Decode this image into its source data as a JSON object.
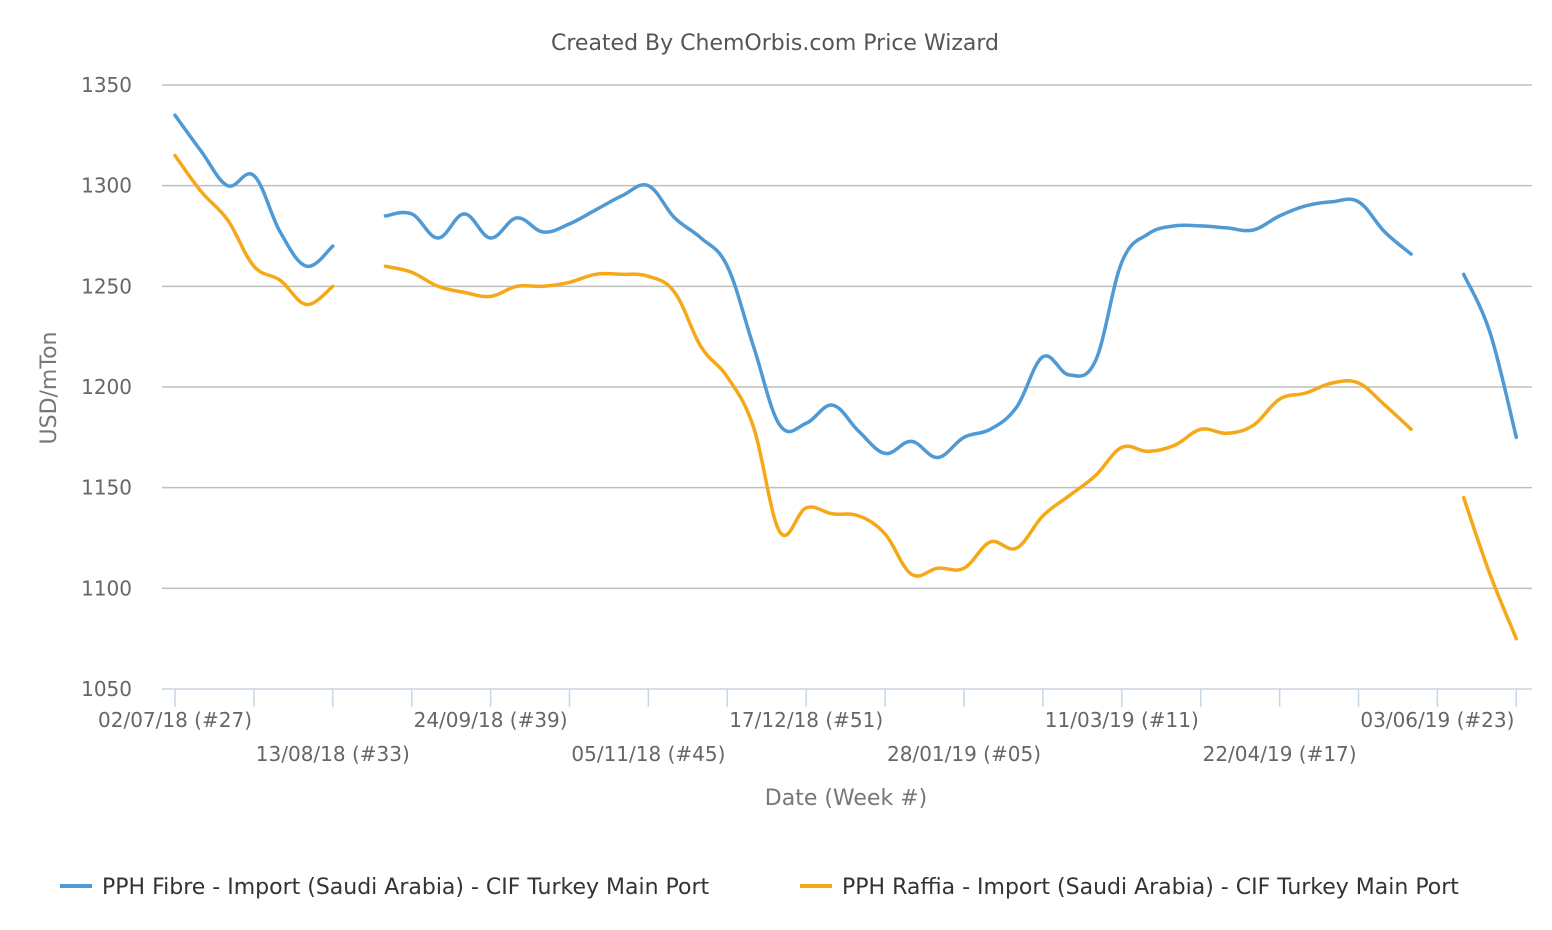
{
  "chart_data": {
    "type": "line",
    "title": "Created By ChemOrbis.com Price Wizard",
    "xlabel": "Date (Week #)",
    "ylabel": "USD/mTon",
    "ylim": [
      1050,
      1350
    ],
    "yticks": [
      1050,
      1100,
      1150,
      1200,
      1250,
      1300,
      1350
    ],
    "x_range": [
      27,
      52,
      26
    ],
    "x_tick_labels": [
      {
        "week_index": 0,
        "label": "02/07/18 (#27)",
        "row": 1
      },
      {
        "week_index": 6,
        "label": "13/08/18 (#33)",
        "row": 2
      },
      {
        "week_index": 12,
        "label": "24/09/18 (#39)",
        "row": 1
      },
      {
        "week_index": 18,
        "label": "05/11/18 (#45)",
        "row": 2
      },
      {
        "week_index": 24,
        "label": "17/12/18 (#51)",
        "row": 1
      },
      {
        "week_index": 30,
        "label": "28/01/19 (#05)",
        "row": 2
      },
      {
        "week_index": 36,
        "label": "11/03/19 (#11)",
        "row": 1
      },
      {
        "week_index": 42,
        "label": "22/04/19 (#17)",
        "row": 2
      },
      {
        "week_index": 48,
        "label": "03/06/19 (#23)",
        "row": 1
      }
    ],
    "x_minor_ticks": [
      0,
      3,
      6,
      9,
      12,
      15,
      18,
      21,
      24,
      27,
      30,
      33,
      36,
      39,
      42,
      45,
      48,
      51
    ],
    "grid": true,
    "legend_position": "bottom",
    "series": [
      {
        "name": "PPH Fibre - Import (Saudi Arabia) - CIF Turkey Main Port",
        "color": "#4f9ad4",
        "values": [
          1335,
          1317,
          1300,
          1305,
          1277,
          1260,
          1270,
          null,
          1285,
          1286,
          1274,
          1286,
          1274,
          1284,
          1277,
          1281,
          1288,
          1295,
          1300,
          1284,
          1274,
          1260,
          1220,
          1181,
          1182,
          1191,
          1178,
          1167,
          1173,
          1165,
          1175,
          1179,
          1190,
          1215,
          1206,
          1213,
          1262,
          1276,
          1280,
          1280,
          1279,
          1278,
          1285,
          1290,
          1292,
          1292,
          1277,
          1266,
          null,
          1256,
          1227,
          1175
        ]
      },
      {
        "name": "PPH Raffia - Import (Saudi Arabia) - CIF Turkey Main Port",
        "color": "#f5a818",
        "values": [
          1315,
          1297,
          1283,
          1260,
          1253,
          1241,
          1250,
          null,
          1260,
          1257,
          1250,
          1247,
          1245,
          1250,
          1250,
          1252,
          1256,
          1256,
          1255,
          1247,
          1220,
          1205,
          1180,
          1128,
          1140,
          1137,
          1136,
          1127,
          1107,
          1110,
          1110,
          1123,
          1120,
          1136,
          1146,
          1156,
          1170,
          1168,
          1171,
          1179,
          1177,
          1181,
          1194,
          1197,
          1202,
          1202,
          1191,
          1179,
          null,
          1145,
          1107,
          1075
        ]
      }
    ]
  }
}
